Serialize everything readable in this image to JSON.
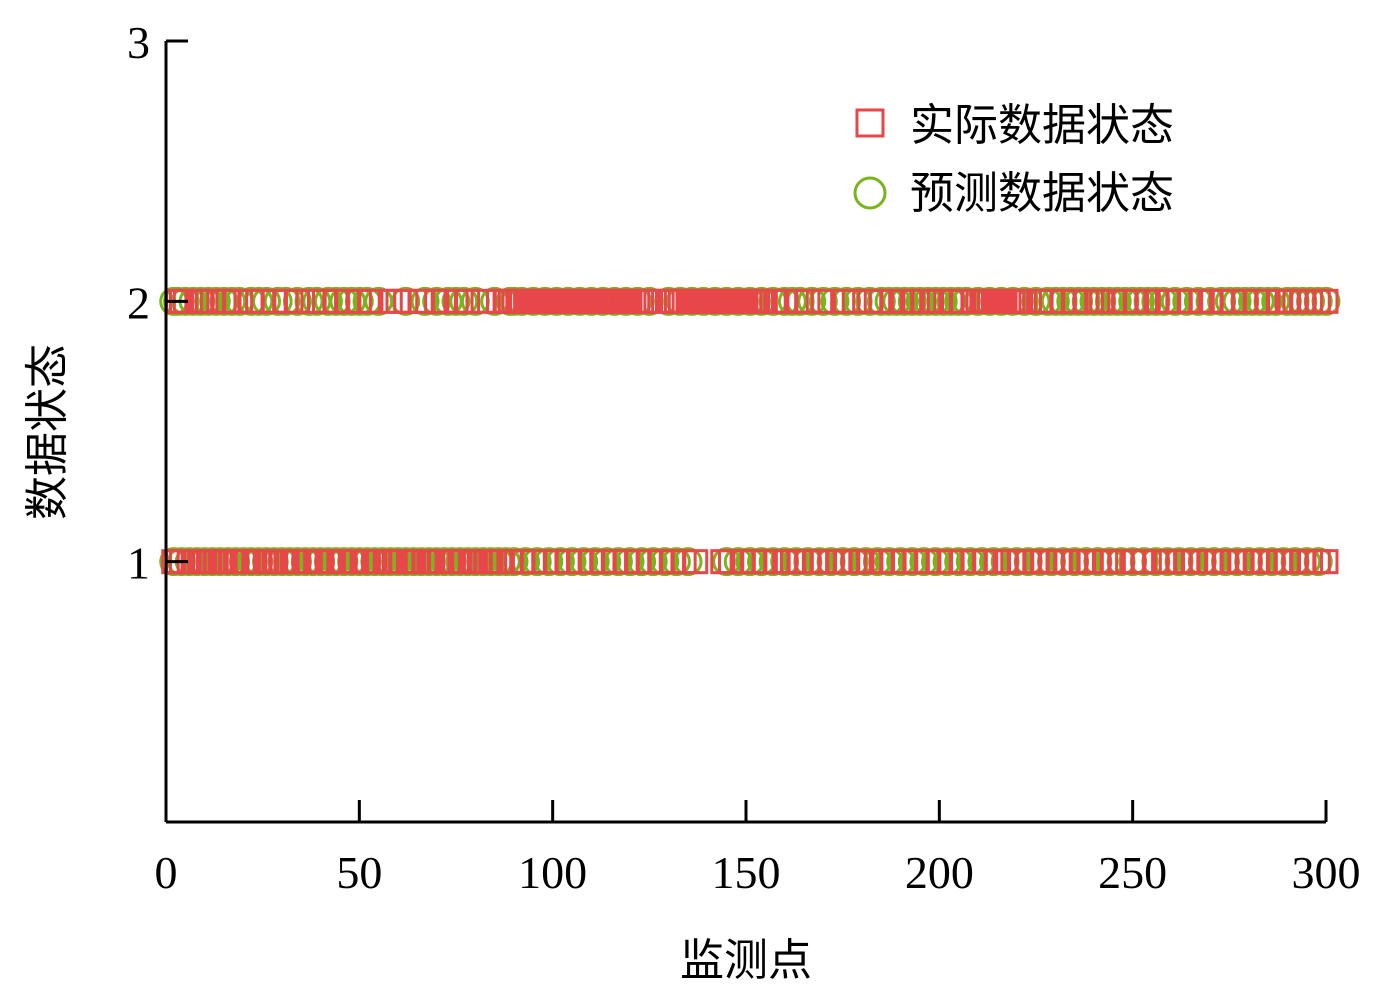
{
  "chart_data": {
    "type": "scatter",
    "xlabel": "监测点",
    "ylabel": "数据状态",
    "xlim": [
      0,
      300
    ],
    "ylim": [
      0,
      3
    ],
    "xticks": [
      0,
      50,
      100,
      150,
      200,
      250,
      300
    ],
    "yticks": [
      1,
      2,
      3
    ],
    "grid": false,
    "legend_position": "top-right",
    "series": [
      {
        "name": "实际数据状态",
        "marker": "square",
        "color": "#e8474a",
        "state2_points": [
          3,
          4,
          5,
          8,
          9,
          12,
          15,
          16,
          18,
          22,
          25,
          28,
          31,
          34,
          38,
          41,
          44,
          47,
          50,
          53,
          58,
          60,
          62,
          66,
          70,
          72,
          75,
          78,
          82,
          86,
          88,
          89,
          90,
          91,
          92,
          93,
          94,
          95,
          96,
          97,
          98,
          99,
          100,
          101,
          102,
          103,
          104,
          105,
          106,
          107,
          108,
          109,
          110,
          111,
          112,
          113,
          114,
          115,
          116,
          117,
          118,
          119,
          120,
          121,
          122,
          123,
          124,
          125,
          130,
          131,
          132,
          133,
          134,
          135,
          136,
          137,
          138,
          139,
          140,
          141,
          142,
          143,
          144,
          145,
          146,
          147,
          148,
          149,
          150,
          151,
          152,
          153,
          154,
          155,
          158,
          160,
          163,
          166,
          170,
          175,
          178,
          182,
          185,
          188,
          190,
          193,
          196,
          198,
          200,
          203,
          206,
          209,
          210,
          211,
          212,
          213,
          214,
          215,
          216,
          217,
          218,
          219,
          220,
          221,
          222,
          226,
          229,
          232,
          235,
          238,
          241,
          242,
          245,
          248,
          251,
          254,
          256,
          259,
          262,
          265,
          268,
          270,
          273,
          276,
          279,
          282,
          285,
          288,
          290,
          292,
          294,
          296,
          298,
          300
        ],
        "state1_points": [
          2,
          3,
          4,
          6,
          7,
          9,
          10,
          11,
          13,
          14,
          15,
          17,
          18,
          20,
          21,
          23,
          24,
          26,
          27,
          28,
          30,
          31,
          33,
          34,
          36,
          37,
          39,
          40,
          42,
          43,
          45,
          46,
          48,
          49,
          51,
          52,
          54,
          55,
          57,
          58,
          59,
          61,
          63,
          64,
          65,
          67,
          68,
          69,
          71,
          73,
          74,
          76,
          77,
          79,
          80,
          81,
          83,
          84,
          85,
          87,
          89,
          92,
          95,
          98,
          101,
          104,
          107,
          110,
          113,
          116,
          119,
          122,
          125,
          128,
          131,
          134,
          137,
          144,
          146,
          149,
          152,
          155,
          158,
          160,
          162,
          164,
          166,
          168,
          170,
          172,
          174,
          176,
          178,
          180,
          182,
          185,
          188,
          191,
          194,
          197,
          200,
          203,
          206,
          209,
          212,
          215,
          217,
          219,
          221,
          223,
          225,
          227,
          229,
          231,
          233,
          235,
          237,
          239,
          241,
          243,
          245,
          247,
          250,
          253,
          256,
          258,
          260,
          262,
          264,
          266,
          268,
          270,
          272,
          274,
          276,
          278,
          280,
          282,
          284,
          286,
          288,
          290,
          292,
          294,
          296,
          298,
          300
        ]
      },
      {
        "name": "预测数据状态",
        "marker": "circle",
        "color": "#7ab41d",
        "state2_points": [
          2,
          3,
          5,
          7,
          9,
          11,
          13,
          15,
          17,
          19,
          22,
          24,
          26,
          29,
          31,
          34,
          37,
          39,
          42,
          44,
          46,
          48,
          50,
          52,
          55,
          62,
          67,
          70,
          73,
          75,
          77,
          80,
          85,
          89,
          90,
          92,
          95,
          98,
          101,
          104,
          107,
          110,
          113,
          116,
          119,
          122,
          125,
          130,
          133,
          136,
          139,
          142,
          145,
          148,
          151,
          154,
          157,
          160,
          162,
          164,
          167,
          170,
          173,
          176,
          179,
          182,
          185,
          187,
          189,
          191,
          193,
          195,
          197,
          199,
          201,
          203,
          205,
          207,
          210,
          213,
          216,
          219,
          222,
          225,
          228,
          230,
          232,
          234,
          236,
          238,
          240,
          242,
          244,
          246,
          248,
          250,
          252,
          254,
          256,
          258,
          261,
          264,
          267,
          270,
          273,
          275,
          277,
          279,
          281,
          283,
          285,
          287,
          290,
          292,
          294,
          296,
          298,
          300
        ],
        "state1_points": [
          2,
          4,
          6,
          8,
          10,
          12,
          14,
          16,
          18,
          20,
          22,
          24,
          26,
          28,
          30,
          32,
          34,
          36,
          38,
          40,
          42,
          44,
          46,
          48,
          50,
          52,
          54,
          56,
          58,
          60,
          62,
          64,
          66,
          68,
          70,
          72,
          74,
          76,
          78,
          80,
          82,
          84,
          86,
          88,
          90,
          93,
          96,
          99,
          102,
          105,
          108,
          111,
          114,
          117,
          120,
          123,
          126,
          129,
          132,
          135,
          145,
          148,
          151,
          154,
          157,
          160,
          163,
          166,
          169,
          172,
          175,
          178,
          181,
          184,
          187,
          190,
          193,
          196,
          199,
          202,
          205,
          208,
          211,
          214,
          217,
          220,
          223,
          226,
          229,
          232,
          235,
          238,
          241,
          244,
          247,
          250,
          253,
          256,
          259,
          262,
          265,
          268,
          271,
          274,
          277,
          280,
          283,
          286,
          289,
          292,
          295,
          298
        ]
      }
    ]
  }
}
